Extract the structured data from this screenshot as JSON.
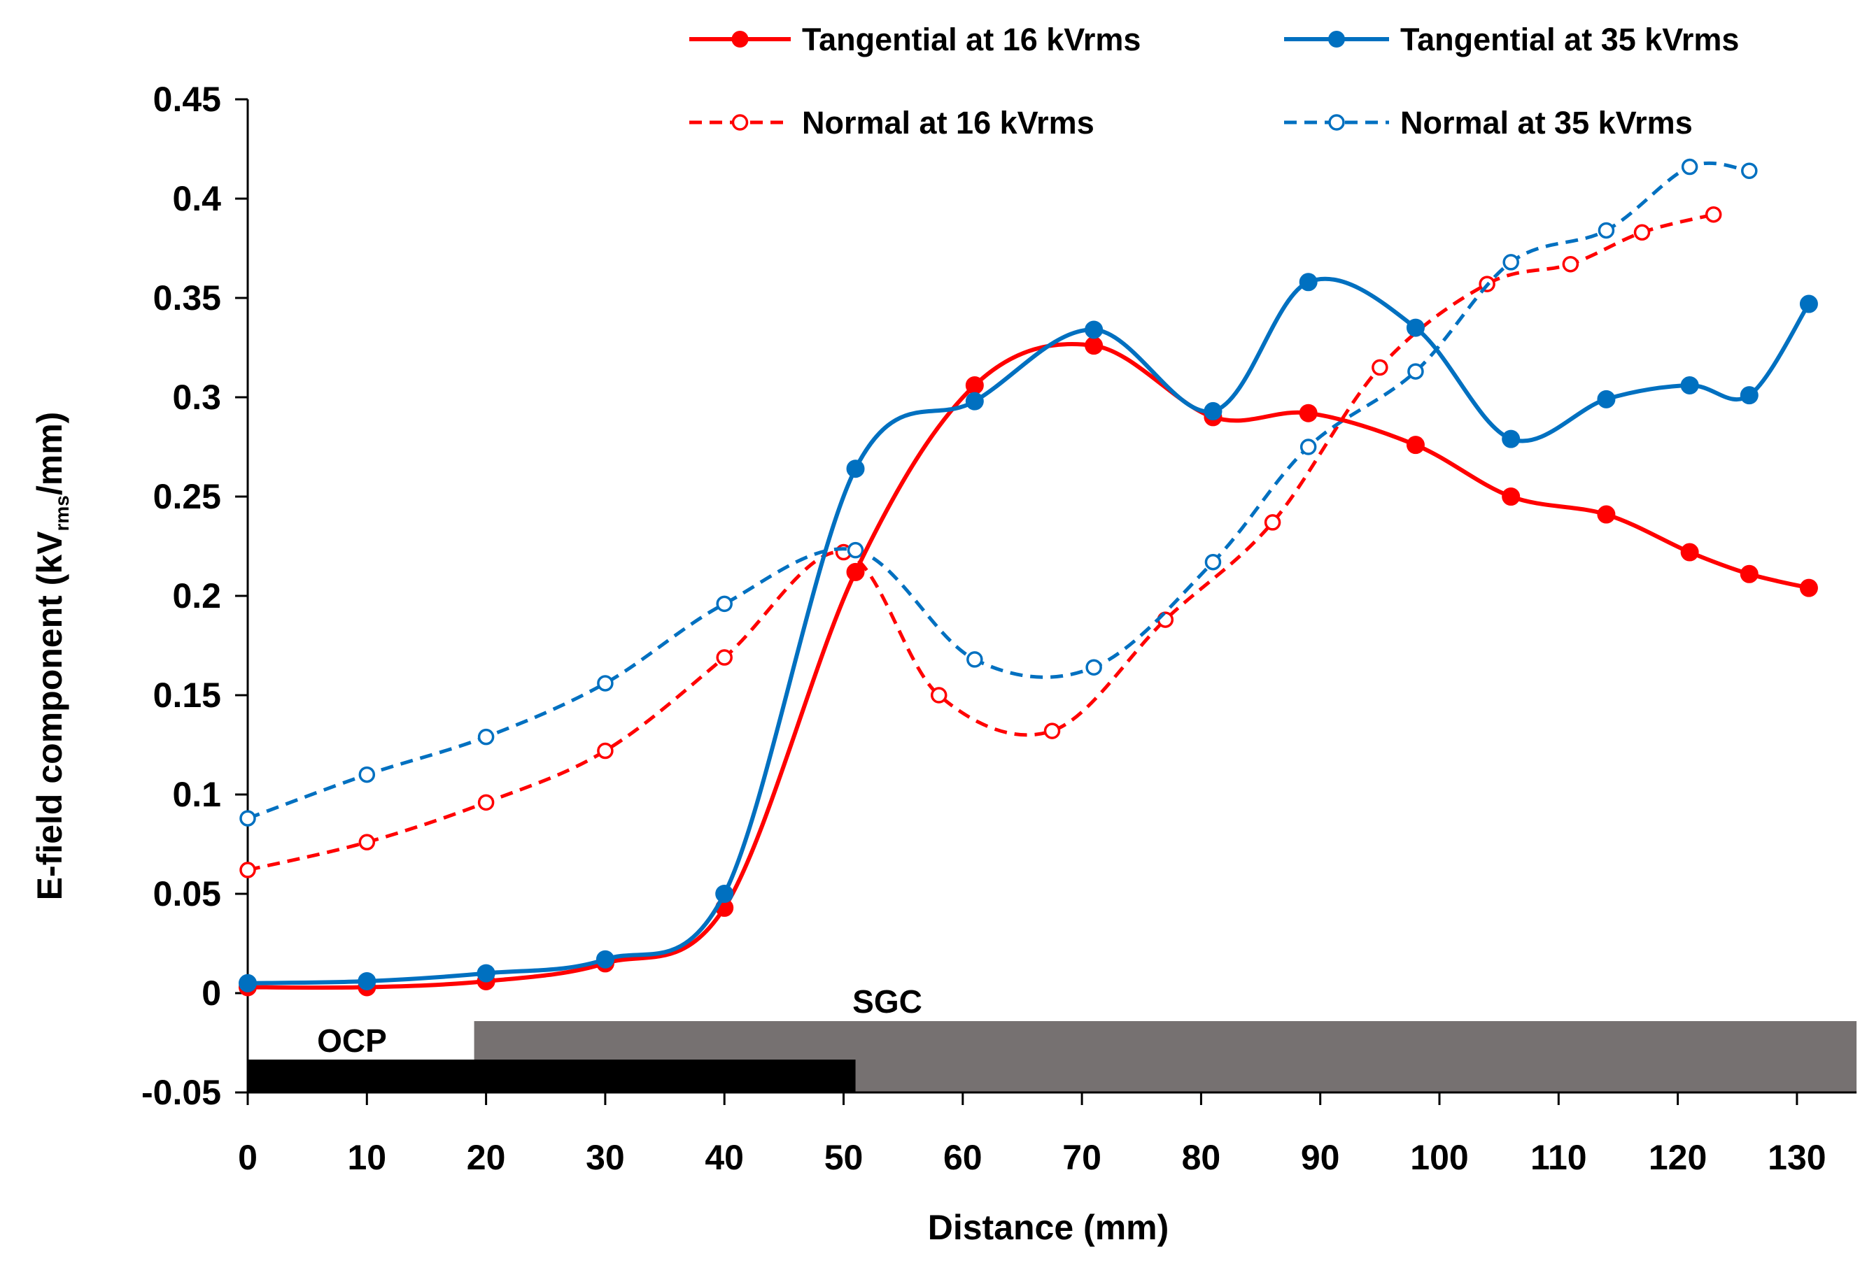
{
  "chart_data": {
    "type": "line",
    "title": "",
    "xlabel": "Distance (mm)",
    "ylabel_main": "E-field component (kV",
    "ylabel_sub": "rms",
    "ylabel_end": "/mm)",
    "xlim": [
      0,
      135
    ],
    "ylim": [
      -0.05,
      0.45
    ],
    "xticks": [
      0,
      10,
      20,
      30,
      40,
      50,
      60,
      70,
      80,
      90,
      100,
      110,
      120,
      130
    ],
    "yticks": [
      -0.05,
      0,
      0.05,
      0.1,
      0.15,
      0.2,
      0.25,
      0.3,
      0.35,
      0.4,
      0.45
    ],
    "ytick_labels": [
      "-0.05",
      "0",
      "0.05",
      "0.1",
      "0.15",
      "0.2",
      "0.25",
      "0.3",
      "0.35",
      "0.4",
      "0.45"
    ],
    "grid": false,
    "legend_position": "top",
    "regions": [
      {
        "name": "OCP",
        "x_start": 0,
        "x_end": 51,
        "color": "#000000"
      },
      {
        "name": "SGC",
        "x_start": 19,
        "x_end": 135,
        "color": "#767171"
      }
    ],
    "series": [
      {
        "name": "Tangential at 16 kVrms",
        "color": "#ff0000",
        "style": "solid",
        "marker": "filled",
        "x": [
          0,
          10,
          20,
          30,
          40,
          51,
          61,
          71,
          81,
          89,
          98,
          106,
          114,
          121,
          126,
          131
        ],
        "y": [
          0.003,
          0.003,
          0.006,
          0.015,
          0.043,
          0.212,
          0.306,
          0.326,
          0.29,
          0.292,
          0.276,
          0.25,
          0.241,
          0.222,
          0.211,
          0.204
        ]
      },
      {
        "name": "Tangential at 35 kVrms",
        "color": "#0070c0",
        "style": "solid",
        "marker": "filled",
        "x": [
          0,
          10,
          20,
          30,
          40,
          51,
          61,
          71,
          81,
          89,
          98,
          106,
          114,
          121,
          126,
          131
        ],
        "y": [
          0.005,
          0.006,
          0.01,
          0.017,
          0.05,
          0.264,
          0.298,
          0.334,
          0.293,
          0.358,
          0.335,
          0.279,
          0.299,
          0.306,
          0.301,
          0.347
        ]
      },
      {
        "name": "Normal at 16 kVrms",
        "color": "#ff0000",
        "style": "dashed",
        "marker": "open",
        "x": [
          0,
          10,
          20,
          30,
          40,
          50,
          58,
          67.5,
          77,
          86,
          95,
          104,
          111,
          117,
          123
        ],
        "y": [
          0.062,
          0.076,
          0.096,
          0.122,
          0.169,
          0.222,
          0.15,
          0.132,
          0.188,
          0.237,
          0.315,
          0.357,
          0.367,
          0.383,
          0.392
        ]
      },
      {
        "name": "Normal at 35 kVrms",
        "color": "#0070c0",
        "style": "dashed",
        "marker": "open",
        "x": [
          0,
          10,
          20,
          30,
          40,
          51,
          61,
          71,
          81,
          89,
          98,
          106,
          114,
          121,
          126
        ],
        "y": [
          0.088,
          0.11,
          0.129,
          0.156,
          0.196,
          0.223,
          0.168,
          0.164,
          0.217,
          0.275,
          0.313,
          0.368,
          0.384,
          0.416,
          0.414
        ]
      }
    ]
  }
}
